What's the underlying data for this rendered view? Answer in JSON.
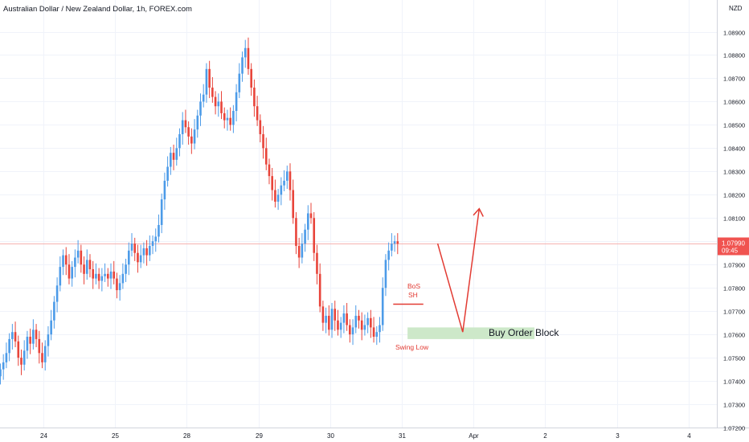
{
  "header": {
    "title": "Australian Dollar / New Zealand Dollar, 1h, FOREX.com"
  },
  "price_scale": {
    "currency": "NZD",
    "current_price": "1.07990",
    "countdown": "09:45"
  },
  "annotations": {
    "bos_line1": "BoS",
    "bos_line2": "SH",
    "swing_low": "Swing Low",
    "order_block": "Buy Order Block"
  },
  "colors": {
    "up": "#4c9be8",
    "down": "#e8443a",
    "order_block": "#cde8c9",
    "annotation": "#e23b33",
    "price_line": "#f6b3b0",
    "price_tag": "#f05350"
  },
  "chart_data": {
    "type": "candlestick",
    "title": "Australian Dollar / New Zealand Dollar, 1h, FOREX.com",
    "ylim": [
      1.072,
      1.091
    ],
    "yticks": [
      1.072,
      1.073,
      1.074,
      1.075,
      1.076,
      1.077,
      1.078,
      1.079,
      1.08,
      1.081,
      1.082,
      1.083,
      1.084,
      1.085,
      1.086,
      1.087,
      1.088,
      1.089
    ],
    "ytick_labels": [
      "1.07200",
      "1.07300",
      "1.07400",
      "1.07500",
      "1.07600",
      "1.07700",
      "1.07800",
      "1.07900",
      "",
      "1.08100",
      "1.08200",
      "1.08300",
      "1.08400",
      "1.08500",
      "1.08600",
      "1.08700",
      "1.08800",
      "1.08900"
    ],
    "xticks": [
      {
        "label": "24",
        "t": 0
      },
      {
        "label": "25",
        "t": 1
      },
      {
        "label": "28",
        "t": 2
      },
      {
        "label": "29",
        "t": 3
      },
      {
        "label": "30",
        "t": 4
      },
      {
        "label": "31",
        "t": 5
      },
      {
        "label": "Apr",
        "t": 6
      },
      {
        "label": "2",
        "t": 7
      },
      {
        "label": "3",
        "t": 8
      },
      {
        "label": "4",
        "t": 9
      }
    ],
    "x_start": -0.6,
    "bars_per_day": 24,
    "closes": [
      1.0745,
      1.0748,
      1.0752,
      1.0758,
      1.0761,
      1.0757,
      1.075,
      1.0747,
      1.0753,
      1.0759,
      1.0756,
      1.0762,
      1.0758,
      1.0752,
      1.0748,
      1.0755,
      1.076,
      1.0766,
      1.0774,
      1.0781,
      1.0789,
      1.0794,
      1.079,
      1.0784,
      1.0789,
      1.0793,
      1.0796,
      1.079,
      1.0786,
      1.0792,
      1.0788,
      1.0784,
      1.0786,
      1.0783,
      1.0785,
      1.0786,
      1.0784,
      1.0787,
      1.0784,
      1.0779,
      1.0782,
      1.0786,
      1.079,
      1.0796,
      1.0799,
      1.0795,
      1.0791,
      1.0794,
      1.0797,
      1.0794,
      1.0798,
      1.08,
      1.0802,
      1.0807,
      1.0818,
      1.0826,
      1.0832,
      1.0838,
      1.0835,
      1.084,
      1.0846,
      1.0852,
      1.0849,
      1.0845,
      1.0842,
      1.0848,
      1.0854,
      1.086,
      1.0863,
      1.0874,
      1.0866,
      1.0862,
      1.0858,
      1.086,
      1.0855,
      1.0852,
      1.0853,
      1.085,
      1.0856,
      1.0864,
      1.0872,
      1.0879,
      1.0883,
      1.0874,
      1.0866,
      1.0858,
      1.0852,
      1.0846,
      1.084,
      1.0833,
      1.0828,
      1.0822,
      1.0817,
      1.082,
      1.0824,
      1.0826,
      1.083,
      1.0822,
      1.081,
      1.0798,
      1.0793,
      1.0799,
      1.0805,
      1.0812,
      1.081,
      1.0795,
      1.0786,
      1.0772,
      1.0765,
      1.0768,
      1.0762,
      1.0771,
      1.0766,
      1.0762,
      1.0765,
      1.0769,
      1.0764,
      1.076,
      1.0763,
      1.0768,
      1.0766,
      1.0762,
      1.0764,
      1.0767,
      1.0763,
      1.0759,
      1.0761,
      1.0764,
      1.078,
      1.0792,
      1.0796,
      1.0799,
      1.08,
      1.0799
    ],
    "candle_open_first": 1.0742,
    "current_price": 1.0799,
    "order_block": {
      "low": 1.0758,
      "high": 1.0763,
      "t_start": 5.08,
      "t_end": 6.85
    },
    "bos_level": {
      "value": 1.0773,
      "t_start": 4.88,
      "t_end": 5.3
    },
    "projection": [
      {
        "t": 5.5,
        "y": 1.0799
      },
      {
        "t": 5.85,
        "y": 1.0761
      },
      {
        "t": 6.08,
        "y": 1.0814
      }
    ]
  }
}
